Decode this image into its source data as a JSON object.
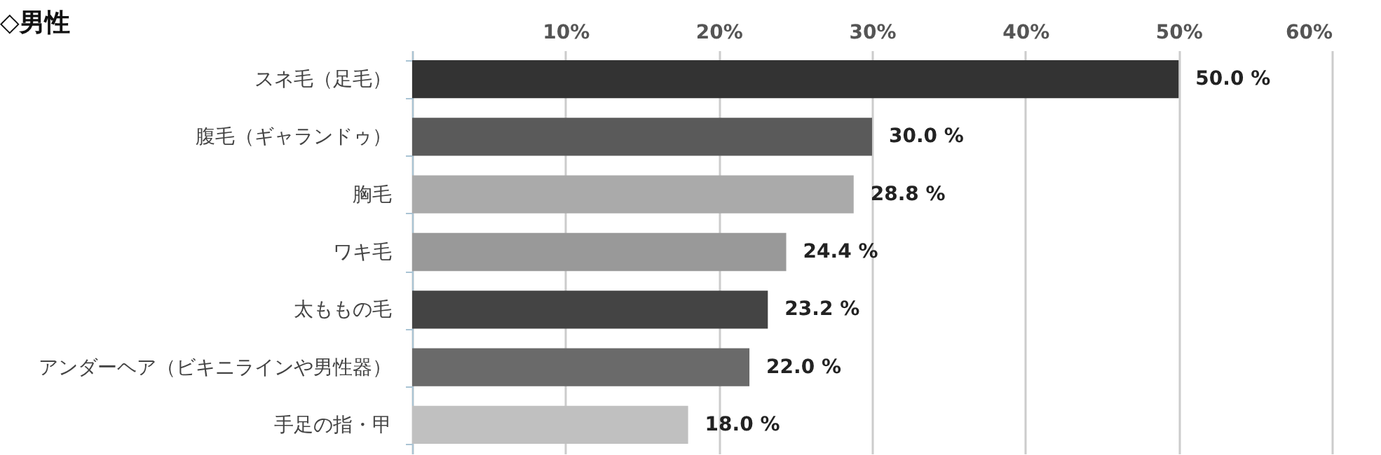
{
  "chart_data": {
    "type": "bar",
    "orientation": "horizontal",
    "title": "◇男性",
    "categories": [
      "スネ毛（足毛）",
      "腹毛（ギャランドゥ）",
      "胸毛",
      "ワキ毛",
      "太ももの毛",
      "アンダーヘア（ビキニラインや男性器）",
      "手足の指・甲"
    ],
    "values": [
      50.0,
      30.0,
      28.8,
      24.4,
      23.2,
      22.0,
      18.0
    ],
    "colors": [
      "#333333",
      "#5a5a5a",
      "#aaaaaa",
      "#999999",
      "#444444",
      "#6a6a6a",
      "#c0c0c0"
    ],
    "value_labels": [
      "50.0 %",
      "30.0 %",
      "28.8 %",
      "24.4 %",
      "23.2 %",
      "22.0 %",
      "18.0 %"
    ],
    "xlim": [
      0,
      60
    ],
    "xticks": [
      {
        "value": 0,
        "label": null
      },
      {
        "value": 10,
        "label": "10%"
      },
      {
        "value": 20,
        "label": "20%"
      },
      {
        "value": 30,
        "label": "30%"
      },
      {
        "value": 40,
        "label": "40%"
      },
      {
        "value": 50,
        "label": "50%"
      },
      {
        "value": 60,
        "label": "60%"
      }
    ],
    "grid": "x"
  }
}
